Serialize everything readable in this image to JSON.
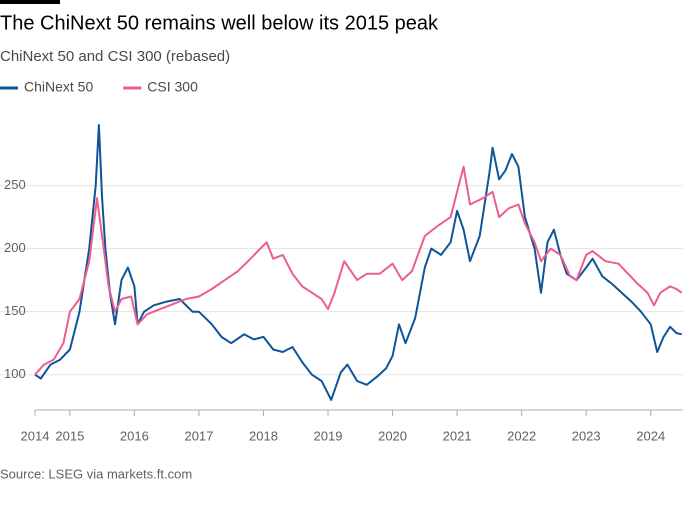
{
  "chart_data": {
    "type": "line",
    "title": "The ChiNext 50 remains well below its 2015 peak",
    "subtitle": "ChiNext 50 and CSI 300 (rebased)",
    "source": "Source: LSEG via markets.ft.com",
    "xlim": [
      2014.46,
      2024.5
    ],
    "xticks": [
      {
        "value": 2014.46,
        "label": "2014"
      },
      2015,
      2016,
      2017,
      2018,
      2019,
      2020,
      2021,
      2022,
      2023,
      2024
    ],
    "ylim": [
      72,
      302
    ],
    "yticks": [
      100,
      150,
      200,
      250
    ],
    "grid": true,
    "series": [
      {
        "name": "ChiNext 50",
        "color": "#0f5499",
        "x": [
          2014.46,
          2014.55,
          2014.7,
          2014.85,
          2015.0,
          2015.15,
          2015.3,
          2015.4,
          2015.45,
          2015.5,
          2015.55,
          2015.62,
          2015.7,
          2015.8,
          2015.9,
          2016.0,
          2016.05,
          2016.15,
          2016.3,
          2016.5,
          2016.7,
          2016.9,
          2017.0,
          2017.2,
          2017.35,
          2017.5,
          2017.7,
          2017.85,
          2018.0,
          2018.15,
          2018.3,
          2018.45,
          2018.6,
          2018.75,
          2018.9,
          2019.0,
          2019.05,
          2019.2,
          2019.3,
          2019.45,
          2019.6,
          2019.75,
          2019.9,
          2020.0,
          2020.1,
          2020.2,
          2020.35,
          2020.5,
          2020.6,
          2020.75,
          2020.9,
          2021.0,
          2021.1,
          2021.2,
          2021.35,
          2021.5,
          2021.55,
          2021.65,
          2021.75,
          2021.85,
          2021.95,
          2022.05,
          2022.2,
          2022.3,
          2022.4,
          2022.5,
          2022.6,
          2022.7,
          2022.85,
          2023.0,
          2023.1,
          2023.25,
          2023.4,
          2023.55,
          2023.7,
          2023.85,
          2024.0,
          2024.1,
          2024.2,
          2024.3,
          2024.4,
          2024.48
        ],
        "values": [
          100,
          97,
          108,
          112,
          120,
          150,
          200,
          250,
          298,
          240,
          200,
          165,
          140,
          175,
          185,
          170,
          140,
          150,
          155,
          158,
          160,
          150,
          150,
          140,
          130,
          125,
          132,
          128,
          130,
          120,
          118,
          122,
          110,
          100,
          95,
          85,
          80,
          102,
          108,
          95,
          92,
          98,
          105,
          115,
          140,
          125,
          145,
          185,
          200,
          195,
          205,
          230,
          215,
          190,
          210,
          260,
          280,
          255,
          262,
          275,
          265,
          225,
          200,
          165,
          205,
          215,
          195,
          180,
          175,
          185,
          192,
          178,
          172,
          165,
          158,
          150,
          140,
          118,
          130,
          138,
          133,
          132
        ]
      },
      {
        "name": "CSI 300",
        "color": "#eb5e8d",
        "x": [
          2014.46,
          2014.6,
          2014.75,
          2014.9,
          2015.0,
          2015.15,
          2015.3,
          2015.42,
          2015.5,
          2015.6,
          2015.7,
          2015.8,
          2015.95,
          2016.05,
          2016.2,
          2016.4,
          2016.6,
          2016.8,
          2017.0,
          2017.2,
          2017.4,
          2017.6,
          2017.8,
          2017.95,
          2018.05,
          2018.15,
          2018.3,
          2018.45,
          2018.6,
          2018.75,
          2018.9,
          2019.0,
          2019.1,
          2019.25,
          2019.45,
          2019.6,
          2019.8,
          2020.0,
          2020.15,
          2020.3,
          2020.5,
          2020.7,
          2020.9,
          2021.05,
          2021.1,
          2021.2,
          2021.4,
          2021.55,
          2021.65,
          2021.8,
          2021.95,
          2022.05,
          2022.2,
          2022.3,
          2022.45,
          2022.6,
          2022.75,
          2022.85,
          2023.0,
          2023.1,
          2023.3,
          2023.5,
          2023.65,
          2023.8,
          2023.95,
          2024.05,
          2024.15,
          2024.3,
          2024.4,
          2024.48
        ],
        "values": [
          100,
          108,
          112,
          125,
          150,
          160,
          190,
          240,
          210,
          170,
          150,
          160,
          162,
          140,
          148,
          152,
          156,
          160,
          162,
          168,
          175,
          182,
          192,
          200,
          205,
          192,
          195,
          180,
          170,
          165,
          160,
          152,
          165,
          190,
          175,
          180,
          180,
          188,
          175,
          182,
          210,
          218,
          225,
          255,
          265,
          235,
          240,
          245,
          225,
          232,
          235,
          220,
          205,
          190,
          200,
          195,
          178,
          175,
          195,
          198,
          190,
          188,
          180,
          172,
          165,
          155,
          165,
          170,
          168,
          165
        ]
      }
    ]
  }
}
